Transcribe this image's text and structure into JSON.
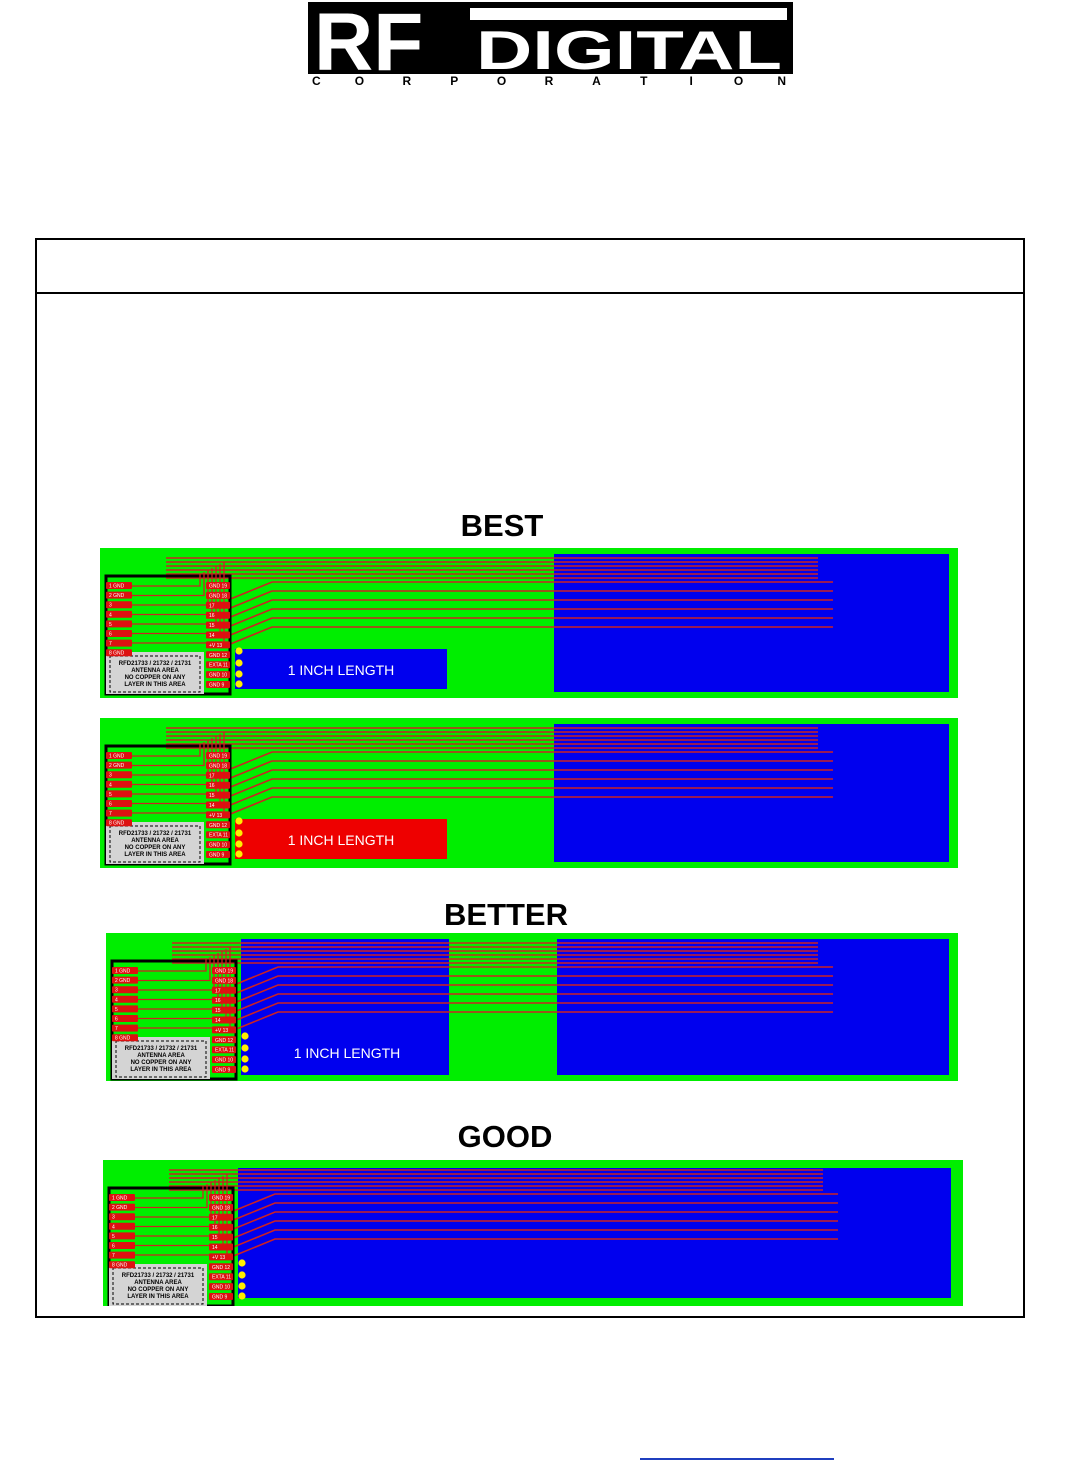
{
  "logo": {
    "big_letters": "RF",
    "word": "DIGITAL",
    "sub_letters": [
      "C",
      "O",
      "R",
      "P",
      "O",
      "R",
      "A",
      "T",
      "I",
      "O",
      "N"
    ]
  },
  "sections": {
    "best": "BEST",
    "better": "BETTER",
    "good": "GOOD"
  },
  "boards": {
    "length_label": "1 INCH LENGTH",
    "antenna_note": [
      "RFD21733 / 21732 / 21731",
      "ANTENNA AREA",
      "NO COPPER ON ANY",
      "LAYER IN THIS AREA"
    ],
    "left_pins": [
      "1 GND",
      "2 GND",
      "3",
      "4",
      "5",
      "6",
      "7",
      "8 GND"
    ],
    "right_pins": [
      "GND 19",
      "GND 18",
      "17",
      "16",
      "15",
      "14",
      "+V 13",
      "GND 12",
      "EXTA 11",
      "GND 10",
      "GND 9"
    ]
  },
  "colors": {
    "ground_fill": "#00ee00",
    "plane_blue": "#0000ee",
    "keepout_red": "#ee0000",
    "trace": "#cc2222",
    "pin_red": "#dd1111",
    "via_yellow": "#ffee00",
    "antenna_gray": "#d4d4d4"
  }
}
